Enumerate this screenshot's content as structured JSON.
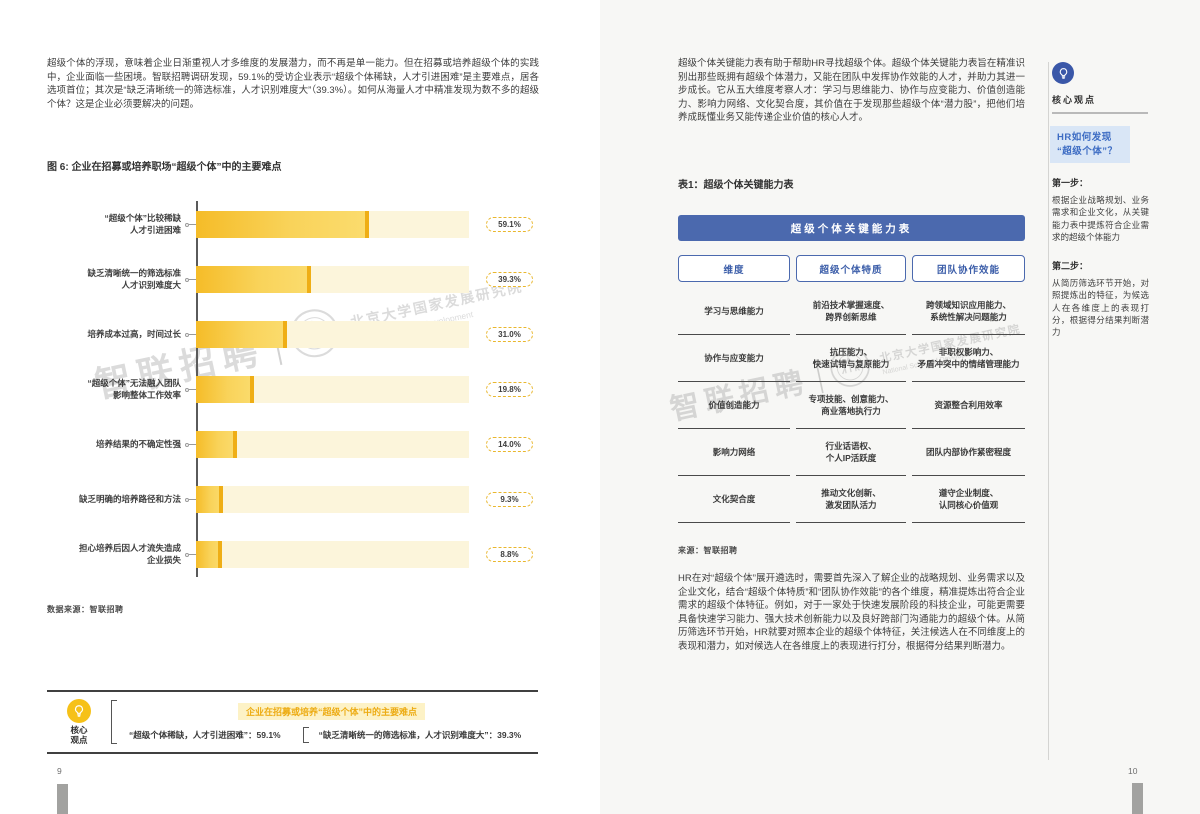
{
  "colors": {
    "accent_blue": "#4b69ae",
    "accent_yellow": "#f6c118",
    "bar_fill": "#f5bc28",
    "bar_track": "#fcf5db",
    "light_blue_bg": "#d9e6f6",
    "highlight_yellow": "#fdf2c6"
  },
  "left_page": {
    "intro": "超级个体的浮现，意味着企业日渐重视人才多维度的发展潜力，而不再是单一能力。但在招募或培养超级个体的实践中，企业面临一些困境。智联招聘调研发现，59.1%的受访企业表示“超级个体稀缺，人才引进困难”是主要难点，居各选项首位；其次是“缺乏清晰统一的筛选标准，人才识别难度大”（39.3%）。如何从海量人才中精准发现为数不多的超级个体？这是企业必须要解决的问题。",
    "source": "数据来源：智联招聘",
    "key_point": {
      "icon_label": "核心\n观点",
      "title": "企业在招募或培养“超级个体”中的主要难点",
      "items": [
        "“超级个体稀缺，人才引进困难”：59.1%",
        "“缺乏清晰统一的筛选标准，人才识别难度大”：39.3%"
      ]
    },
    "page_number": "9"
  },
  "chart_data": {
    "type": "bar",
    "orientation": "horizontal",
    "title": "图 6: 企业在招募或培养职场“超级个体”中的主要难点",
    "categories": [
      "“超级个体”比较稀缺\n人才引进困难",
      "缺乏清晰统一的筛选标准\n人才识别难度大",
      "培养成本过高，时间过长",
      "“超级个体”无法融入团队\n影响整体工作效率",
      "培养结果的不确定性强",
      "缺乏明确的培养路径和方法",
      "担心培养后因人才流失造成\n企业损失"
    ],
    "values": [
      59.1,
      39.3,
      31.0,
      19.8,
      14.0,
      9.3,
      8.8
    ],
    "value_labels": [
      "59.1%",
      "39.3%",
      "31.0%",
      "19.8%",
      "14.0%",
      "9.3%",
      "8.8%"
    ],
    "unit": "%",
    "xlim": [
      0,
      93
    ],
    "grid": false,
    "legend": false,
    "source": "数据来源：智联招聘"
  },
  "right_page": {
    "intro": "超级个体关键能力表有助于帮助HR寻找超级个体。超级个体关键能力表旨在精准识别出那些既拥有超级个体潜力，又能在团队中发挥协作效能的人才，并助力其进一步成长。它从五大维度考察人才：学习与思维能力、协作与应变能力、价值创造能力、影响力网络、文化契合度，其价值在于发现那些超级个体“潜力股”，把他们培养成既懂业务又能传递企业价值的核心人才。",
    "table_caption": "表1：超级个体关键能力表",
    "table": {
      "banner": "超级个体关键能力表",
      "headers": [
        "维度",
        "超级个体特质",
        "团队协作效能"
      ],
      "rows": [
        [
          "学习与思维能力",
          "前沿技术掌握速度、\n跨界创新思维",
          "跨领域知识应用能力、\n系统性解决问题能力"
        ],
        [
          "协作与应变能力",
          "抗压能力、\n快速试错与复原能力",
          "非职权影响力、\n矛盾冲突中的情绪管理能力"
        ],
        [
          "价值创造能力",
          "专项技能、创意能力、\n商业落地执行力",
          "资源整合利用效率"
        ],
        [
          "影响力网络",
          "行业话语权、\n个人IP活跃度",
          "团队内部协作紧密程度"
        ],
        [
          "文化契合度",
          "推动文化创新、\n激发团队活力",
          "遵守企业制度、\n认同核心价值观"
        ]
      ],
      "source": "来源：智联招聘"
    },
    "body": "HR在对“超级个体”展开遴选时，需要首先深入了解企业的战略规划、业务需求以及企业文化，结合“超级个体特质”和“团队协作效能”的各个维度，精准提炼出符合企业需求的超级个体特征。例如，对于一家处于快速发展阶段的科技企业，可能更需要具备快速学习能力、强大技术创新能力以及良好跨部门沟通能力的超级个体。从简历筛选环节开始，HR就要对照本企业的超级个体特征，关注候选人在不同维度上的表现和潜力，如对候选人在各维度上的表现进行打分，根据得分结果判断潜力。",
    "sidebar": {
      "icon_label": "核心观点",
      "question": "HR如何发现\n“超级个体”？",
      "steps": [
        {
          "label": "第一步：",
          "text": "根据企业战略规划、业务需求和企业文化，从关键能力表中提炼符合企业需求的超级个体能力"
        },
        {
          "label": "第二步：",
          "text": "从简历筛选环节开始，对照提炼出的特征，为候选人在各维度上的表现打分，根据得分结果判断潜力"
        }
      ]
    },
    "page_number": "10"
  },
  "watermark": {
    "brand": "智联招聘",
    "org_cn": "北京大学国家发展研究院",
    "org_en": "National School of Development"
  }
}
